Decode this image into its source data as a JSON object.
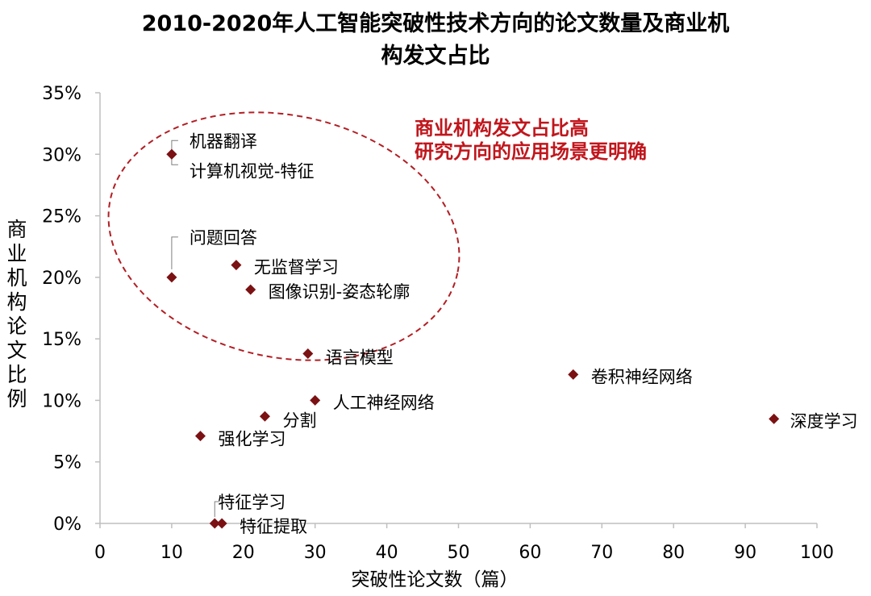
{
  "title_lines": [
    "2010-2020年人工智能突破性技术方向的论文数量及商业机",
    "构发文占比"
  ],
  "ylabel_chars": [
    "商",
    "业",
    "机",
    "构",
    "论",
    "文",
    "比",
    "例"
  ],
  "colors": {
    "marker": "#7b1113",
    "annotation": "#c0161c",
    "ellipse": "#b21e24",
    "axis": "#bfbfbf"
  },
  "chart_data": {
    "type": "scatter",
    "title": "2010-2020年人工智能突破性技术方向的论文数量及商业机构发文占比",
    "xlabel": "突破性论文数（篇）",
    "ylabel": "商业机构论文比例",
    "xlim": [
      0,
      100
    ],
    "ylim": [
      0,
      0.35
    ],
    "x_ticks": [
      0,
      10,
      20,
      30,
      40,
      50,
      60,
      70,
      80,
      90,
      100
    ],
    "y_ticks": [
      0,
      0.05,
      0.1,
      0.15,
      0.2,
      0.25,
      0.3,
      0.35
    ],
    "x_tick_labels": [
      "0",
      "10",
      "20",
      "30",
      "40",
      "50",
      "60",
      "70",
      "80",
      "90",
      "100"
    ],
    "y_tick_labels": [
      "0%",
      "5%",
      "10%",
      "15%",
      "20%",
      "25%",
      "30%",
      "35%"
    ],
    "grid": false,
    "points": [
      {
        "label": "机器翻译",
        "x": 10,
        "y": 0.3
      },
      {
        "label": "计算机视觉-特征",
        "x": 10,
        "y": 0.3
      },
      {
        "label": "问题回答",
        "x": 10,
        "y": 0.2
      },
      {
        "label": "无监督学习",
        "x": 19,
        "y": 0.21
      },
      {
        "label": "图像识别-姿态轮廓",
        "x": 21,
        "y": 0.19
      },
      {
        "label": "语言模型",
        "x": 29,
        "y": 0.138
      },
      {
        "label": "卷积神经网络",
        "x": 66,
        "y": 0.121
      },
      {
        "label": "人工神经网络",
        "x": 30,
        "y": 0.1
      },
      {
        "label": "分割",
        "x": 23,
        "y": 0.087
      },
      {
        "label": "深度学习",
        "x": 94,
        "y": 0.085
      },
      {
        "label": "强化学习",
        "x": 14,
        "y": 0.071
      },
      {
        "label": "特征学习",
        "x": 16,
        "y": 0.0
      },
      {
        "label": "特征提取",
        "x": 17,
        "y": 0.0
      }
    ],
    "annotation": [
      "商业机构发文占比高",
      "研究方向的应用场景更明确"
    ]
  }
}
